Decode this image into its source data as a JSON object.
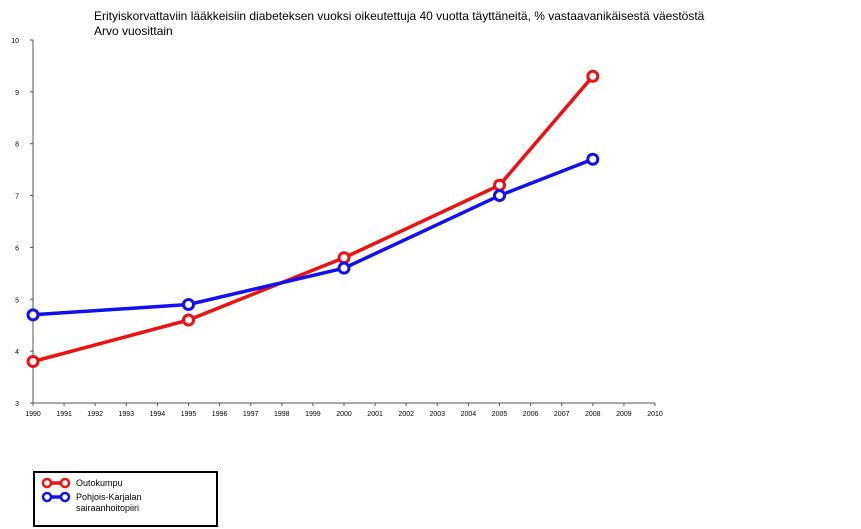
{
  "chart_data": {
    "type": "line",
    "title": "Erityiskorvattaviin lääkkeisiin diabeteksen vuoksi oikeutettuja 40 vuotta täyttäneitä, % vastaavanikäisestä väestöstä",
    "subtitle": "Arvo vuosittain",
    "xlabel": "",
    "ylabel": "",
    "xlim": [
      1990,
      2010
    ],
    "ylim": [
      3,
      10
    ],
    "x_ticks": [
      1990,
      1991,
      1992,
      1993,
      1994,
      1995,
      1996,
      1997,
      1998,
      1999,
      2000,
      2001,
      2002,
      2003,
      2004,
      2005,
      2006,
      2007,
      2008,
      2009,
      2010
    ],
    "y_ticks": [
      3,
      4,
      5,
      6,
      7,
      8,
      9,
      10
    ],
    "grid": false,
    "legend_position": "bottom-left",
    "series": [
      {
        "name": "Outokumpu",
        "color": "#ee1111",
        "x": [
          1990,
          1995,
          2000,
          2005,
          2008
        ],
        "y": [
          3.8,
          4.6,
          5.8,
          7.2,
          9.3
        ]
      },
      {
        "name": "Pohjois-Karjalan sairaanhoitopiiri",
        "legend_lines": [
          "Pohjois-Karjalan",
          "sairaanhoitopiiri"
        ],
        "color": "#1111ee",
        "x": [
          1990,
          1995,
          2000,
          2005,
          2008
        ],
        "y": [
          4.7,
          4.9,
          5.6,
          7.0,
          7.7
        ]
      }
    ]
  }
}
